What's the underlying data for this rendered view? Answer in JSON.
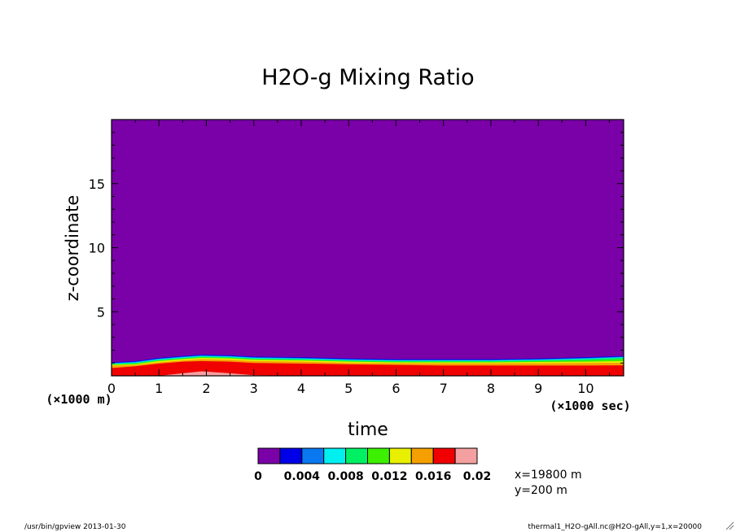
{
  "chart_data": {
    "type": "heatmap",
    "title": "H2O-g Mixing Ratio",
    "xlabel": "time",
    "x_unit": "(×1000 sec)",
    "ylabel": "z-coordinate",
    "y_unit": "(×1000 m)",
    "xlim": [
      0,
      10.8
    ],
    "ylim": [
      0,
      20
    ],
    "x_ticks": [
      "0",
      "1",
      "2",
      "3",
      "4",
      "5",
      "6",
      "7",
      "8",
      "9",
      "10"
    ],
    "y_ticks": [
      "5",
      "10",
      "15"
    ],
    "x_tick_values": [
      0,
      1,
      2,
      3,
      4,
      5,
      6,
      7,
      8,
      9,
      10
    ],
    "y_tick_values": [
      5,
      10,
      15
    ],
    "colorbar": {
      "levels": [
        0,
        0.002,
        0.004,
        0.006,
        0.008,
        0.01,
        0.012,
        0.014,
        0.016,
        0.018,
        0.02
      ],
      "labels": [
        "0",
        "0.004",
        "0.008",
        "0.012",
        "0.016",
        "0.02"
      ],
      "label_values": [
        0,
        0.004,
        0.008,
        0.012,
        0.016,
        0.02
      ],
      "colors": [
        "#7a00a8",
        "#0000e8",
        "#0a78f0",
        "#00f0f0",
        "#00f064",
        "#3cf000",
        "#e8f000",
        "#f5a000",
        "#f00000",
        "#f5a0a0"
      ]
    },
    "contour_bands": {
      "times": [
        0,
        0.5,
        1,
        1.5,
        1.9,
        2.5,
        3,
        4,
        5,
        6,
        7,
        8,
        9,
        10,
        10.8
      ],
      "boundaries": [
        {
          "level": 0.002,
          "z": [
            1.05,
            1.15,
            1.4,
            1.55,
            1.65,
            1.6,
            1.5,
            1.45,
            1.35,
            1.3,
            1.3,
            1.3,
            1.35,
            1.45,
            1.55
          ]
        },
        {
          "level": 0.004,
          "z": [
            1.0,
            1.1,
            1.35,
            1.5,
            1.6,
            1.55,
            1.45,
            1.4,
            1.3,
            1.25,
            1.25,
            1.25,
            1.3,
            1.4,
            1.5
          ]
        },
        {
          "level": 0.006,
          "z": [
            0.97,
            1.05,
            1.3,
            1.45,
            1.55,
            1.5,
            1.4,
            1.35,
            1.25,
            1.2,
            1.2,
            1.2,
            1.25,
            1.35,
            1.45
          ]
        },
        {
          "level": 0.008,
          "z": [
            0.93,
            1.0,
            1.25,
            1.4,
            1.5,
            1.45,
            1.35,
            1.3,
            1.2,
            1.15,
            1.15,
            1.15,
            1.2,
            1.3,
            1.4
          ]
        },
        {
          "level": 0.01,
          "z": [
            0.9,
            0.96,
            1.2,
            1.35,
            1.45,
            1.4,
            1.3,
            1.25,
            1.15,
            1.1,
            1.1,
            1.1,
            1.15,
            1.2,
            1.3
          ]
        },
        {
          "level": 0.012,
          "z": [
            0.85,
            0.9,
            1.15,
            1.3,
            1.4,
            1.35,
            1.25,
            1.2,
            1.1,
            1.05,
            1.05,
            1.05,
            1.08,
            1.1,
            1.15
          ]
        },
        {
          "level": 0.014,
          "z": [
            0.8,
            0.85,
            1.05,
            1.2,
            1.3,
            1.25,
            1.15,
            1.1,
            1.0,
            0.98,
            0.97,
            0.97,
            0.98,
            1.0,
            1.02
          ]
        },
        {
          "level": 0.016,
          "z": [
            0.6,
            0.75,
            0.95,
            1.1,
            1.15,
            1.1,
            1.0,
            0.95,
            0.9,
            0.85,
            0.8,
            0.8,
            0.8,
            0.8,
            0.82
          ]
        },
        {
          "level": 0.018,
          "z": [
            0,
            0,
            0,
            0.2,
            0.35,
            0.2,
            0.05,
            0,
            0,
            0,
            0,
            0,
            0,
            0,
            0
          ]
        }
      ]
    }
  },
  "annotations": {
    "location_x": "x=19800 m",
    "location_y": "y=200 m",
    "footer_left": "/usr/bin/gpview  2013-01-30",
    "footer_right": "thermal1_H2O-gAll.nc@H2O-gAll,y=1,x=20000"
  }
}
